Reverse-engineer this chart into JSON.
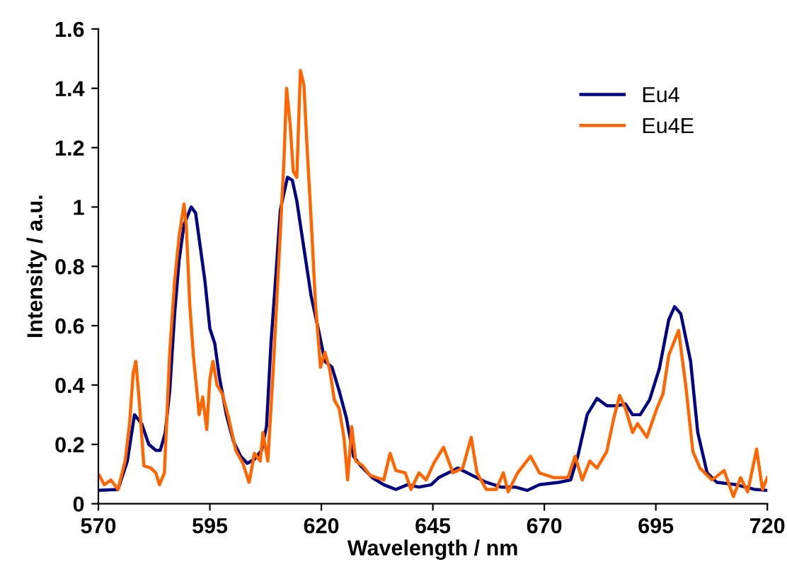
{
  "chart_data": {
    "type": "line",
    "xlabel": "Wavelength / nm",
    "ylabel": "Intensity / a.u.",
    "xlim": [
      570,
      720
    ],
    "xticks": [
      570,
      595,
      620,
      645,
      670,
      695,
      720
    ],
    "ylim": [
      0,
      1.6
    ],
    "yticks": [
      0,
      0.2,
      0.4,
      0.6,
      0.8,
      1,
      1.2,
      1.4,
      1.6
    ],
    "grid": false,
    "legend": "top right",
    "marker": "none",
    "line_style": "solid",
    "series": [
      {
        "name": "Eu4",
        "color": "#000080",
        "x": [
          570.2,
          574.4,
          576.5,
          578.1,
          579.7,
          581.3,
          582.9,
          583.9,
          585.0,
          586.0,
          587.1,
          588.1,
          589.2,
          590.8,
          591.8,
          592.9,
          593.9,
          595.0,
          596.1,
          597.1,
          598.7,
          600.3,
          601.9,
          603.4,
          605.0,
          606.6,
          607.7,
          608.7,
          609.8,
          610.8,
          612.4,
          613.5,
          614.5,
          616.1,
          617.7,
          619.3,
          620.8,
          622.4,
          624.0,
          625.6,
          627.2,
          628.8,
          631.4,
          634.0,
          636.7,
          639.3,
          641.9,
          644.6,
          646.3,
          650.6,
          653.8,
          657.0,
          660.3,
          663.5,
          666.2,
          668.9,
          673.2,
          675.9,
          677.5,
          679.6,
          681.8,
          684.0,
          686.1,
          688.2,
          689.8,
          691.5,
          693.6,
          695.8,
          697.9,
          699.2,
          700.6,
          702.8,
          704.4,
          706.5,
          708.7,
          713.0,
          717.3,
          720.0
        ],
        "values": [
          0.045,
          0.048,
          0.144,
          0.3,
          0.27,
          0.2,
          0.18,
          0.18,
          0.24,
          0.38,
          0.64,
          0.82,
          0.94,
          1.0,
          0.98,
          0.86,
          0.75,
          0.59,
          0.54,
          0.43,
          0.3,
          0.21,
          0.16,
          0.136,
          0.15,
          0.18,
          0.26,
          0.54,
          0.77,
          0.99,
          1.1,
          1.09,
          1.02,
          0.86,
          0.7,
          0.59,
          0.48,
          0.46,
          0.38,
          0.29,
          0.16,
          0.128,
          0.088,
          0.064,
          0.048,
          0.064,
          0.056,
          0.064,
          0.088,
          0.12,
          0.096,
          0.072,
          0.056,
          0.056,
          0.045,
          0.064,
          0.072,
          0.08,
          0.16,
          0.3,
          0.355,
          0.33,
          0.33,
          0.336,
          0.3,
          0.3,
          0.35,
          0.456,
          0.62,
          0.664,
          0.64,
          0.48,
          0.24,
          0.104,
          0.072,
          0.064,
          0.048,
          0.045
        ]
      },
      {
        "name": "Eu4E",
        "color": "#ff6600",
        "x": [
          570.2,
          571.3,
          572.8,
          574.4,
          576.0,
          577.0,
          577.8,
          578.4,
          579.2,
          580.2,
          581.8,
          582.9,
          583.7,
          584.8,
          586.0,
          587.1,
          588.1,
          589.2,
          589.7,
          590.5,
          591.3,
          592.6,
          593.4,
          594.3,
          595.0,
          595.7,
          596.6,
          597.8,
          599.2,
          600.8,
          602.4,
          603.8,
          605.0,
          606.3,
          606.9,
          608.0,
          609.2,
          610.3,
          611.6,
          612.2,
          613.0,
          613.7,
          614.5,
          615.3,
          616.1,
          616.8,
          617.7,
          618.7,
          619.8,
          620.8,
          621.9,
          622.9,
          624.0,
          625.1,
          625.9,
          626.8,
          627.7,
          629.3,
          630.9,
          632.4,
          634.0,
          635.4,
          636.7,
          638.8,
          640.1,
          641.9,
          643.5,
          645.2,
          647.4,
          649.5,
          651.7,
          653.6,
          654.9,
          657.0,
          659.2,
          660.8,
          661.9,
          664.0,
          666.9,
          668.9,
          672.1,
          675.3,
          676.9,
          678.5,
          680.2,
          681.8,
          684.0,
          685.6,
          686.9,
          688.2,
          689.8,
          690.9,
          693.0,
          695.2,
          696.6,
          697.9,
          700.1,
          701.7,
          703.3,
          704.9,
          707.6,
          710.3,
          712.4,
          714.0,
          715.6,
          717.6,
          718.9,
          720.0
        ],
        "values": [
          0.096,
          0.064,
          0.08,
          0.048,
          0.144,
          0.27,
          0.44,
          0.48,
          0.34,
          0.128,
          0.12,
          0.104,
          0.064,
          0.104,
          0.51,
          0.75,
          0.9,
          1.01,
          0.94,
          0.67,
          0.5,
          0.3,
          0.36,
          0.25,
          0.42,
          0.48,
          0.4,
          0.37,
          0.29,
          0.18,
          0.136,
          0.072,
          0.17,
          0.144,
          0.24,
          0.144,
          0.45,
          0.77,
          1.15,
          1.4,
          1.28,
          1.12,
          1.1,
          1.46,
          1.41,
          1.2,
          0.96,
          0.67,
          0.46,
          0.51,
          0.45,
          0.35,
          0.32,
          0.22,
          0.08,
          0.26,
          0.144,
          0.128,
          0.096,
          0.088,
          0.08,
          0.17,
          0.112,
          0.104,
          0.048,
          0.104,
          0.08,
          0.136,
          0.19,
          0.104,
          0.12,
          0.224,
          0.104,
          0.048,
          0.048,
          0.104,
          0.04,
          0.104,
          0.16,
          0.104,
          0.088,
          0.088,
          0.16,
          0.08,
          0.144,
          0.12,
          0.176,
          0.29,
          0.365,
          0.32,
          0.24,
          0.27,
          0.224,
          0.32,
          0.37,
          0.5,
          0.584,
          0.4,
          0.176,
          0.12,
          0.08,
          0.112,
          0.024,
          0.088,
          0.04,
          0.184,
          0.048,
          0.088
        ]
      }
    ]
  }
}
